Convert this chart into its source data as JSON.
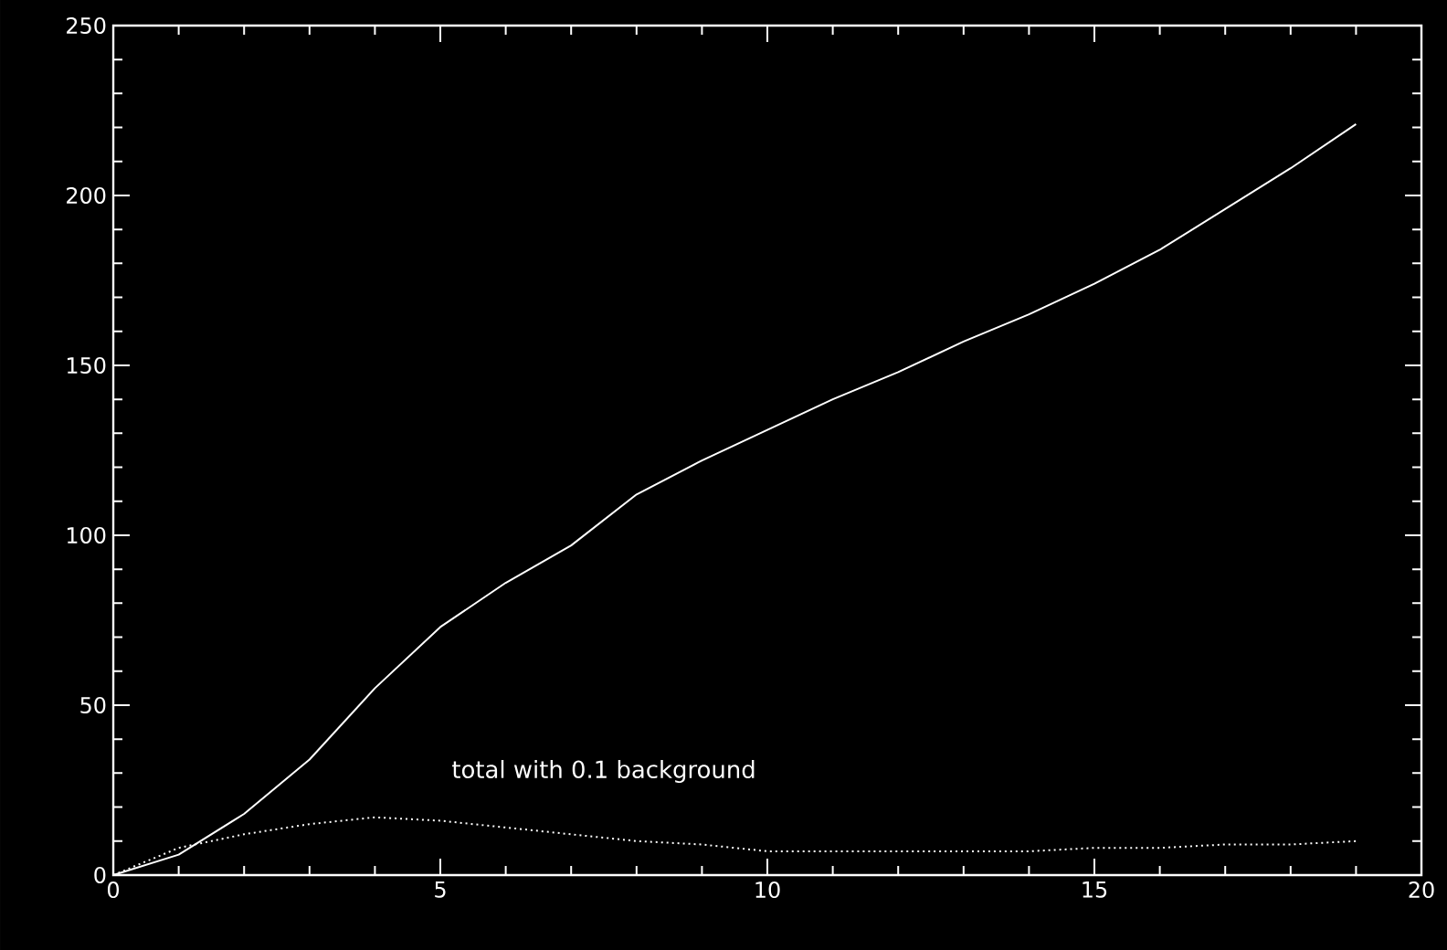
{
  "chart_data": {
    "type": "line",
    "x": [
      0,
      1,
      2,
      3,
      4,
      5,
      6,
      7,
      8,
      9,
      10,
      11,
      12,
      13,
      14,
      15,
      16,
      17,
      18,
      19
    ],
    "series": [
      {
        "color": "#ffffff",
        "line_style": "solid",
        "values": [
          0,
          6,
          18,
          34,
          55,
          73,
          86,
          97,
          112,
          122,
          131,
          140,
          148,
          157,
          165,
          174,
          184,
          196,
          208,
          221
        ]
      },
      {
        "color": "#ffffff",
        "line_style": "dotted",
        "values": [
          0,
          8,
          12,
          15,
          17,
          16,
          14,
          12,
          10,
          9,
          7,
          7,
          7,
          7,
          7,
          8,
          8,
          9,
          9,
          10
        ]
      }
    ],
    "xlim": [
      0,
      20
    ],
    "ylim": [
      0,
      250
    ],
    "xticks": [
      0,
      5,
      10,
      15,
      20
    ],
    "yticks": [
      0,
      50,
      100,
      150,
      200,
      250
    ],
    "annotations": [
      "total with 0.1 background"
    ]
  }
}
